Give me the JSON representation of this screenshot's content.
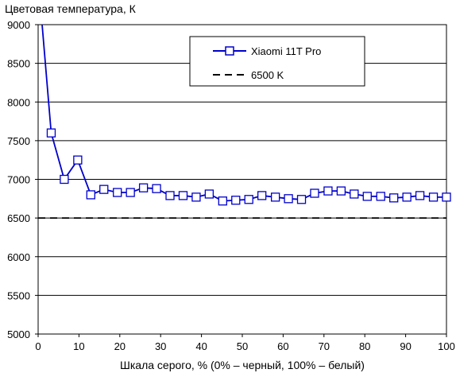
{
  "chart_data": {
    "type": "line",
    "title": "",
    "ylabel": "Цветовая температура, К",
    "xlabel": "Шкала серого, % (0% – черный, 100% – белый)",
    "xlim": [
      0,
      100
    ],
    "ylim": [
      5000,
      9000
    ],
    "xticks": [
      0,
      10,
      20,
      30,
      40,
      50,
      60,
      70,
      80,
      90,
      100
    ],
    "yticks": [
      5000,
      5500,
      6000,
      6500,
      7000,
      7500,
      8000,
      8500,
      9000
    ],
    "grid": "horizontal",
    "legend": "top-right",
    "series": [
      {
        "name": "Xiaomi 11T Pro",
        "color": "#0000cc",
        "marker": "square",
        "x": [
          3.2,
          6.4,
          9.7,
          12.9,
          16.1,
          19.4,
          22.6,
          25.8,
          29.0,
          32.3,
          35.5,
          38.7,
          41.9,
          45.2,
          48.4,
          51.6,
          54.8,
          58.1,
          61.3,
          64.5,
          67.7,
          71.0,
          74.2,
          77.4,
          80.6,
          83.9,
          87.1,
          90.3,
          93.5,
          96.8,
          100
        ],
        "y": [
          7600,
          7000,
          7250,
          6800,
          6870,
          6830,
          6830,
          6890,
          6880,
          6790,
          6790,
          6770,
          6810,
          6720,
          6730,
          6740,
          6790,
          6770,
          6750,
          6740,
          6820,
          6850,
          6850,
          6810,
          6780,
          6780,
          6760,
          6770,
          6790,
          6770,
          6770
        ],
        "start_point": [
          0.5,
          9300
        ]
      },
      {
        "name": "6500 K",
        "color": "#000000",
        "style": "dashed",
        "x": [
          0,
          100
        ],
        "y": [
          6500,
          6500
        ]
      }
    ]
  }
}
